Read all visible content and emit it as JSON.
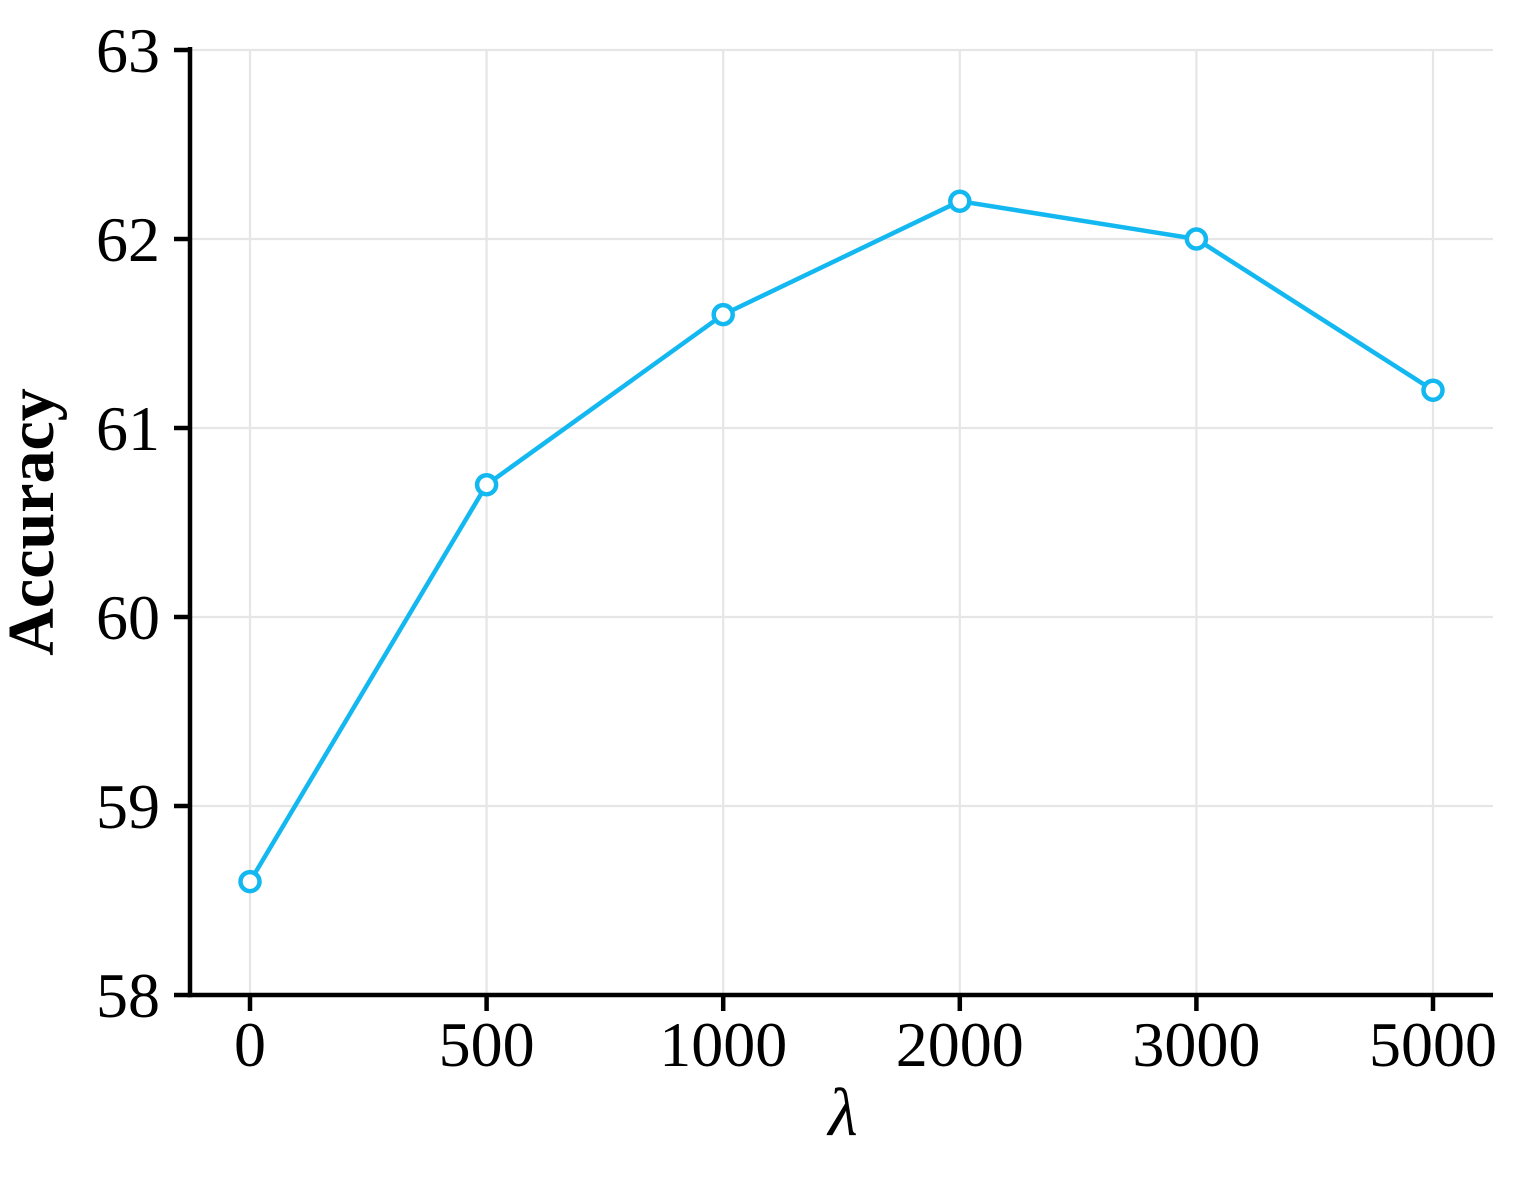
{
  "chart_data": {
    "type": "line",
    "categories": [
      "0",
      "500",
      "1000",
      "2000",
      "3000",
      "5000"
    ],
    "x_values": [
      0,
      500,
      1000,
      2000,
      3000,
      5000
    ],
    "series": [
      {
        "name": "Accuracy",
        "values": [
          58.6,
          60.7,
          61.6,
          62.2,
          62.0,
          61.2
        ]
      }
    ],
    "title": "",
    "xlabel": "λ",
    "ylabel": "Accuracy",
    "ylim": [
      58,
      63
    ],
    "yticks": [
      58,
      59,
      60,
      61,
      62,
      63
    ],
    "x_spacing": "categorical",
    "grid": "on",
    "legend": "none",
    "line_color": "#14b8f0",
    "marker_style": "open-circle",
    "marker_fill": "#ffffff",
    "grid_color": "#e6e6e6",
    "axis_color": "#000000"
  }
}
